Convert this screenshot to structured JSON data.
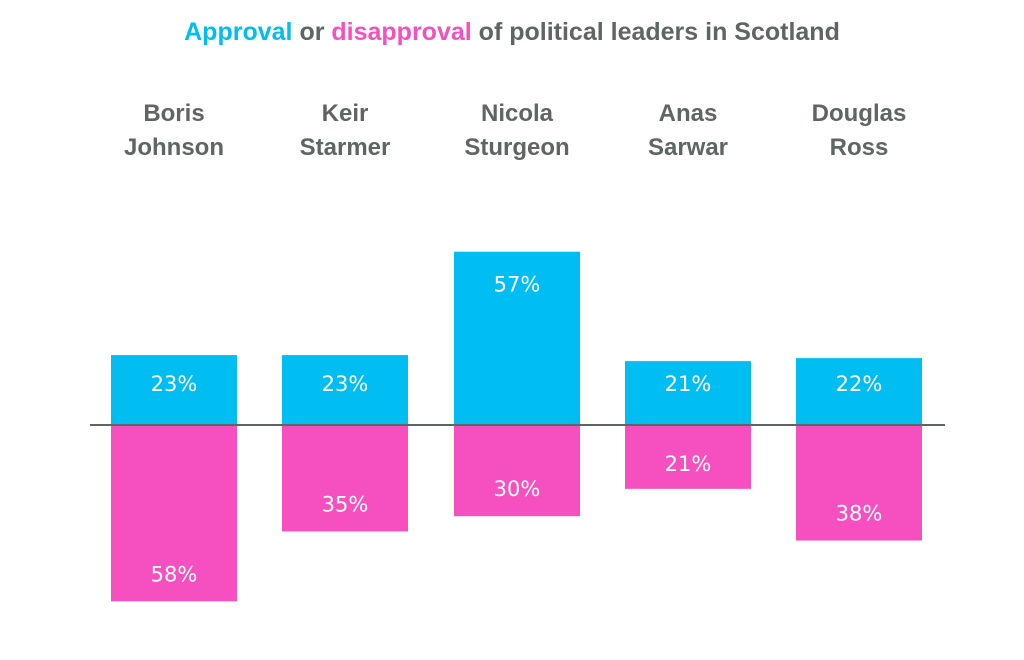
{
  "chart_data": {
    "type": "bar",
    "title": {
      "approval_word": "Approval",
      "or_word": "or",
      "disapproval_word": "disapproval",
      "rest": "of political leaders in Scotland"
    },
    "categories": [
      [
        "Boris",
        "Johnson"
      ],
      [
        "Keir",
        "Starmer"
      ],
      [
        "Nicola",
        "Sturgeon"
      ],
      [
        "Anas",
        "Sarwar"
      ],
      [
        "Douglas",
        "Ross"
      ]
    ],
    "series": [
      {
        "name": "Approval",
        "color": "#00bdf2",
        "values": [
          23,
          23,
          57,
          21,
          22
        ],
        "direction": "up"
      },
      {
        "name": "Disapproval",
        "color": "#f64fbf",
        "values": [
          58,
          35,
          30,
          21,
          38
        ],
        "direction": "down"
      }
    ],
    "value_suffix": "%",
    "baseline_color": "#5f6563",
    "xlabel": "",
    "ylabel": "",
    "ylim": [
      -60,
      60
    ],
    "grid": false
  }
}
